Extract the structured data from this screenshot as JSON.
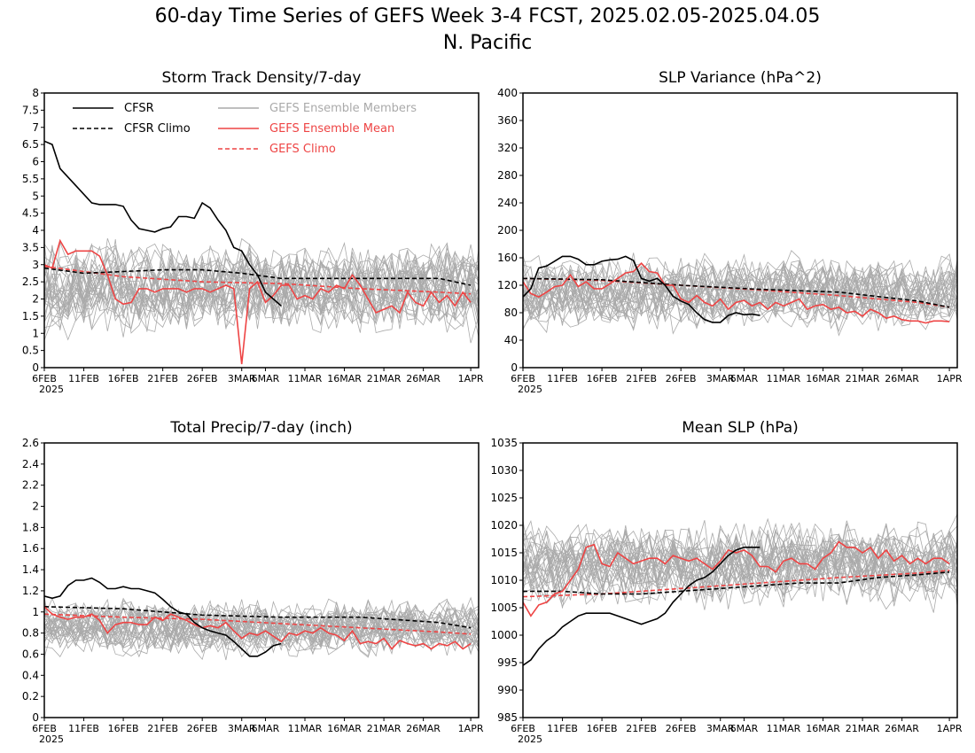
{
  "figure": {
    "title": "60-day Time Series of GEFS Week 3-4 FCST, 2025.02.05-2025.04.05",
    "subtitle": "N. Pacific"
  },
  "colors": {
    "cfsr": "#000000",
    "cfsr_climo": "#000000",
    "members": "#aaaaaa",
    "ens_mean": "#ee4444",
    "gefs_climo": "#ee4444"
  },
  "x_ticks": [
    "6FEB",
    "11FEB",
    "16FEB",
    "21FEB",
    "26FEB",
    "3MAR",
    "6MAR",
    "11MAR",
    "16MAR",
    "21MAR",
    "26MAR",
    "1APR"
  ],
  "x_year": "2025",
  "chart_data": [
    {
      "type": "line",
      "title": "Storm Track Density/7-day",
      "ylim": [
        0,
        8
      ],
      "yticks": [
        "0",
        "0.5",
        "1",
        "1.5",
        "2",
        "2.5",
        "3",
        "3.5",
        "4",
        "4.5",
        "5",
        "5.5",
        "6",
        "6.5",
        "7",
        "7.5",
        "8"
      ],
      "legend": [
        "CFSR",
        "CFSR Climo",
        "GEFS Ensemble Members",
        "GEFS Ensemble Mean",
        "GEFS Climo"
      ],
      "x_days": [
        0,
        5,
        10,
        15,
        20,
        25,
        28,
        33,
        38,
        43,
        48,
        54
      ],
      "member_band": {
        "center": 2.3,
        "spread": 1.4
      },
      "series": [
        {
          "name": "CFSR",
          "style": "solid-black",
          "x": [
            0,
            1,
            2,
            4,
            6,
            7,
            8,
            9,
            10,
            11,
            12,
            13,
            14,
            15,
            16,
            17,
            18,
            19,
            20,
            21,
            22,
            23,
            24,
            25,
            26,
            27,
            28,
            29,
            30
          ],
          "y": [
            6.6,
            6.5,
            5.8,
            5.3,
            4.8,
            4.75,
            4.75,
            4.75,
            4.7,
            4.3,
            4.05,
            4.0,
            3.95,
            4.05,
            4.1,
            4.4,
            4.4,
            4.35,
            4.8,
            4.65,
            4.3,
            4.0,
            3.5,
            3.4,
            3.0,
            2.7,
            2.2,
            2.0,
            1.8
          ]
        },
        {
          "name": "CFSR Climo",
          "style": "dash-black",
          "x": [
            0,
            5,
            10,
            15,
            20,
            25,
            30,
            35,
            40,
            45,
            50,
            54
          ],
          "y": [
            2.9,
            2.75,
            2.8,
            2.85,
            2.85,
            2.75,
            2.6,
            2.6,
            2.6,
            2.6,
            2.6,
            2.4
          ]
        },
        {
          "name": "GEFS Ensemble Mean",
          "style": "solid-red",
          "x": [
            0,
            1,
            2,
            3,
            4,
            5,
            6,
            7,
            8,
            9,
            10,
            11,
            12,
            13,
            14,
            15,
            16,
            17,
            18,
            19,
            20,
            21,
            22,
            23,
            24,
            25,
            26,
            27,
            28,
            29,
            30,
            31,
            32,
            33,
            34,
            35,
            36,
            37,
            38,
            39,
            40,
            41,
            42,
            43,
            44,
            45,
            46,
            47,
            48,
            49,
            50,
            51,
            52,
            53,
            54
          ],
          "y": [
            3.0,
            2.9,
            3.7,
            3.3,
            3.4,
            3.4,
            3.4,
            3.25,
            2.7,
            2.0,
            1.85,
            1.9,
            2.3,
            2.3,
            2.2,
            2.3,
            2.3,
            2.3,
            2.2,
            2.3,
            2.3,
            2.2,
            2.3,
            2.4,
            2.3,
            0.1,
            2.3,
            2.5,
            1.9,
            2.1,
            2.4,
            2.4,
            2.0,
            2.1,
            2.0,
            2.3,
            2.2,
            2.4,
            2.3,
            2.7,
            2.4,
            2.0,
            1.6,
            1.7,
            1.8,
            1.6,
            2.2,
            1.9,
            1.8,
            2.2,
            1.9,
            2.1,
            1.8,
            2.2,
            1.9
          ]
        },
        {
          "name": "GEFS Climo",
          "style": "dash-red",
          "x": [
            0,
            10,
            20,
            30,
            40,
            50,
            54
          ],
          "y": [
            2.95,
            2.65,
            2.5,
            2.45,
            2.3,
            2.2,
            2.15
          ]
        }
      ]
    },
    {
      "type": "line",
      "title": "SLP Variance (hPa^2)",
      "ylim": [
        0,
        400
      ],
      "yticks": [
        "0",
        "40",
        "80",
        "120",
        "160",
        "200",
        "240",
        "280",
        "320",
        "360",
        "400"
      ],
      "x_days": [
        0,
        5,
        10,
        15,
        20,
        25,
        28,
        33,
        38,
        43,
        48,
        54
      ],
      "member_band": {
        "center": 110,
        "spread": 55
      },
      "series": [
        {
          "name": "CFSR",
          "style": "solid-black",
          "x": [
            0,
            1,
            2,
            3,
            4,
            5,
            6,
            7,
            8,
            9,
            10,
            11,
            12,
            13,
            14,
            15,
            16,
            17,
            18,
            19,
            20,
            21,
            22,
            23,
            24,
            25,
            26,
            27,
            28,
            29,
            30
          ],
          "y": [
            103,
            115,
            145,
            148,
            155,
            162,
            162,
            158,
            150,
            150,
            155,
            157,
            158,
            162,
            156,
            130,
            126,
            130,
            120,
            104,
            97,
            92,
            80,
            70,
            66,
            66,
            76,
            80,
            77,
            78,
            76
          ]
        },
        {
          "name": "CFSR Climo",
          "style": "dash-black",
          "x": [
            0,
            10,
            20,
            30,
            40,
            50,
            54
          ],
          "y": [
            130,
            128,
            120,
            114,
            110,
            97,
            88
          ]
        },
        {
          "name": "GEFS Ensemble Mean",
          "style": "solid-red",
          "x": [
            0,
            1,
            2,
            3,
            4,
            5,
            6,
            7,
            8,
            9,
            10,
            11,
            12,
            13,
            14,
            15,
            16,
            17,
            18,
            19,
            20,
            21,
            22,
            23,
            24,
            25,
            26,
            27,
            28,
            29,
            30,
            31,
            32,
            33,
            34,
            35,
            36,
            37,
            38,
            39,
            40,
            41,
            42,
            43,
            44,
            45,
            46,
            47,
            48,
            49,
            50,
            51,
            52,
            53,
            54
          ],
          "y": [
            125,
            108,
            103,
            110,
            118,
            120,
            135,
            118,
            125,
            115,
            115,
            122,
            130,
            138,
            140,
            152,
            140,
            138,
            120,
            120,
            100,
            95,
            105,
            95,
            90,
            100,
            85,
            95,
            98,
            90,
            95,
            85,
            95,
            90,
            95,
            100,
            85,
            90,
            92,
            85,
            88,
            80,
            82,
            75,
            85,
            80,
            72,
            75,
            70,
            68,
            68,
            65,
            68,
            68,
            67
          ]
        },
        {
          "name": "GEFS Climo",
          "style": "dash-red",
          "x": [
            0,
            10,
            20,
            30,
            40,
            50,
            54
          ],
          "y": [
            130,
            127,
            120,
            113,
            105,
            95,
            88
          ]
        }
      ]
    },
    {
      "type": "line",
      "title": "Total Precip/7-day (inch)",
      "ylim": [
        0,
        2.6
      ],
      "yticks": [
        "0",
        "0.2",
        "0.4",
        "0.6",
        "0.8",
        "1",
        "1.2",
        "1.4",
        "1.6",
        "1.8",
        "2",
        "2.2",
        "2.4",
        "2.6"
      ],
      "x_days": [
        0,
        5,
        10,
        15,
        20,
        25,
        28,
        33,
        38,
        43,
        48,
        54
      ],
      "member_band": {
        "center": 0.85,
        "spread": 0.28
      },
      "series": [
        {
          "name": "CFSR",
          "style": "solid-black",
          "x": [
            0,
            1,
            2,
            3,
            4,
            5,
            6,
            7,
            8,
            9,
            10,
            11,
            12,
            13,
            14,
            15,
            16,
            17,
            18,
            19,
            20,
            21,
            22,
            23,
            24,
            25,
            26,
            27,
            28,
            29,
            30
          ],
          "y": [
            1.15,
            1.13,
            1.15,
            1.25,
            1.3,
            1.3,
            1.32,
            1.28,
            1.22,
            1.22,
            1.24,
            1.22,
            1.22,
            1.2,
            1.18,
            1.12,
            1.05,
            1.0,
            0.98,
            0.9,
            0.85,
            0.82,
            0.8,
            0.78,
            0.72,
            0.65,
            0.58,
            0.58,
            0.62,
            0.68,
            0.7
          ]
        },
        {
          "name": "CFSR Climo",
          "style": "dash-black",
          "x": [
            0,
            10,
            20,
            30,
            40,
            50,
            54
          ],
          "y": [
            1.05,
            1.03,
            0.97,
            0.95,
            0.95,
            0.9,
            0.85
          ]
        },
        {
          "name": "GEFS Ensemble Mean",
          "style": "solid-red",
          "x": [
            0,
            1,
            2,
            3,
            4,
            5,
            6,
            7,
            8,
            9,
            10,
            11,
            12,
            13,
            14,
            15,
            16,
            17,
            18,
            19,
            20,
            21,
            22,
            23,
            24,
            25,
            26,
            27,
            28,
            29,
            30,
            31,
            32,
            33,
            34,
            35,
            36,
            37,
            38,
            39,
            40,
            41,
            42,
            43,
            44,
            45,
            46,
            47,
            48,
            49,
            50,
            51,
            52,
            53,
            54
          ],
          "y": [
            1.05,
            0.98,
            0.95,
            0.93,
            0.95,
            0.95,
            0.98,
            0.92,
            0.8,
            0.88,
            0.9,
            0.9,
            0.88,
            0.88,
            0.95,
            0.92,
            0.98,
            0.95,
            0.92,
            0.88,
            0.85,
            0.87,
            0.85,
            0.9,
            0.82,
            0.75,
            0.8,
            0.78,
            0.82,
            0.77,
            0.72,
            0.8,
            0.78,
            0.82,
            0.8,
            0.85,
            0.8,
            0.78,
            0.73,
            0.82,
            0.7,
            0.72,
            0.7,
            0.75,
            0.65,
            0.73,
            0.7,
            0.68,
            0.7,
            0.65,
            0.7,
            0.68,
            0.72,
            0.65,
            0.7
          ]
        },
        {
          "name": "GEFS Climo",
          "style": "dash-red",
          "x": [
            0,
            10,
            20,
            30,
            40,
            50,
            54
          ],
          "y": [
            0.98,
            0.95,
            0.93,
            0.89,
            0.85,
            0.81,
            0.79
          ]
        }
      ]
    },
    {
      "type": "line",
      "title": "Mean SLP (hPa)",
      "ylim": [
        985,
        1035
      ],
      "yticks": [
        "985",
        "990",
        "995",
        "1000",
        "1005",
        "1010",
        "1015",
        "1020",
        "1025",
        "1030",
        "1035"
      ],
      "x_days": [
        0,
        5,
        10,
        15,
        20,
        25,
        28,
        33,
        38,
        43,
        48,
        54
      ],
      "member_band": {
        "center": 1013,
        "spread": 8
      },
      "series": [
        {
          "name": "CFSR",
          "style": "solid-black",
          "x": [
            0,
            1,
            2,
            3,
            4,
            5,
            6,
            7,
            8,
            9,
            10,
            11,
            12,
            13,
            14,
            15,
            16,
            17,
            18,
            19,
            20,
            21,
            22,
            23,
            24,
            25,
            26,
            27,
            28,
            29,
            30
          ],
          "y": [
            994.5,
            995.5,
            997.5,
            999,
            1000,
            1001.5,
            1002.5,
            1003.5,
            1004,
            1004,
            1004,
            1004,
            1003.5,
            1003,
            1002.5,
            1002,
            1002.5,
            1003,
            1004,
            1006,
            1007.5,
            1009,
            1010,
            1010.5,
            1011.5,
            1013,
            1014.5,
            1015.5,
            1016,
            1016,
            1016
          ]
        },
        {
          "name": "CFSR Climo",
          "style": "dash-black",
          "x": [
            0,
            5,
            10,
            15,
            20,
            25,
            30,
            35,
            40,
            45,
            50,
            54
          ],
          "y": [
            1008,
            1008,
            1007.5,
            1007.5,
            1008,
            1008.5,
            1009,
            1009.5,
            1009.5,
            1010.5,
            1011,
            1011.5
          ]
        },
        {
          "name": "GEFS Ensemble Mean",
          "style": "solid-red",
          "x": [
            0,
            1,
            2,
            3,
            4,
            5,
            6,
            7,
            8,
            9,
            10,
            11,
            12,
            13,
            14,
            15,
            16,
            17,
            18,
            19,
            20,
            21,
            22,
            23,
            24,
            25,
            26,
            27,
            28,
            29,
            30,
            31,
            32,
            33,
            34,
            35,
            36,
            37,
            38,
            39,
            40,
            41,
            42,
            43,
            44,
            45,
            46,
            47,
            48,
            49,
            50,
            51,
            52,
            53,
            54
          ],
          "y": [
            1006,
            1003.5,
            1005.5,
            1006,
            1007.5,
            1008,
            1010,
            1012,
            1016,
            1016.5,
            1013,
            1012.5,
            1015,
            1014,
            1013,
            1013.5,
            1014,
            1014,
            1013,
            1014.5,
            1014,
            1013.5,
            1014,
            1013,
            1012,
            1013.5,
            1015.5,
            1015,
            1015.5,
            1014.5,
            1012.5,
            1012.5,
            1011.5,
            1013.5,
            1014,
            1013,
            1013,
            1012,
            1014,
            1015,
            1017,
            1016,
            1016,
            1015,
            1016,
            1014,
            1015.5,
            1013.5,
            1014.5,
            1013,
            1014,
            1013,
            1014,
            1014,
            1013
          ]
        },
        {
          "name": "GEFS Climo",
          "style": "dash-red",
          "x": [
            0,
            10,
            20,
            30,
            40,
            50,
            54
          ],
          "y": [
            1007,
            1007.5,
            1008.5,
            1009.5,
            1010.5,
            1011.3,
            1011.8
          ]
        }
      ]
    }
  ]
}
